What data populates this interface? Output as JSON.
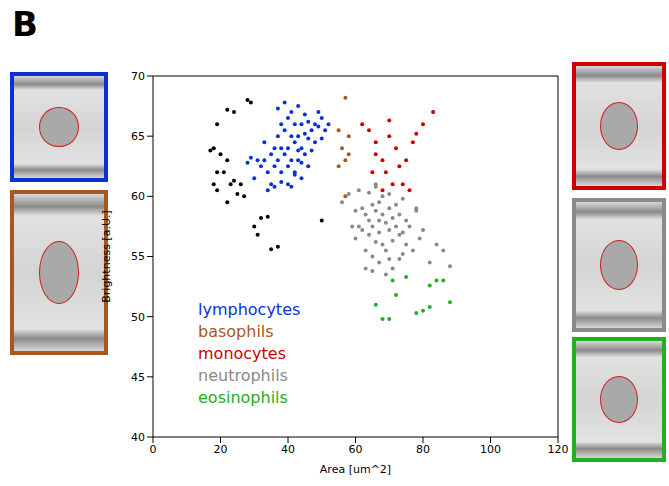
{
  "panel_label": "B",
  "chart_data": {
    "type": "scatter",
    "x_label": "Area [um^2]",
    "y_label": "Brightness [a.U.]",
    "xlim": [
      0,
      120
    ],
    "xticks": [
      0,
      20,
      40,
      60,
      80,
      100,
      120
    ],
    "ylim": [
      40,
      70
    ],
    "yticks": [
      40,
      45,
      50,
      55,
      60,
      65,
      70
    ],
    "grid": false,
    "legend": "lower left",
    "marker": "circle",
    "series": [
      {
        "color": "#000000",
        "x": [
          22,
          24,
          28,
          29,
          19,
          18,
          20,
          22,
          19,
          18,
          21,
          24,
          25,
          19,
          22,
          27,
          26,
          30,
          31,
          34,
          32,
          35,
          37,
          50,
          17,
          23
        ],
        "values": [
          67.2,
          67,
          68,
          67.8,
          66,
          64,
          63.5,
          63,
          62,
          61,
          62,
          61.3,
          60.2,
          60.5,
          59.5,
          60,
          61,
          57.5,
          56.8,
          58.3,
          58.2,
          55.6,
          55.8,
          58,
          63.8,
          61
        ]
      },
      {
        "name": "lymphocytes",
        "color": "#0a32d2",
        "x": [
          30,
          32,
          33,
          34,
          35,
          35,
          36,
          36,
          37,
          37,
          38,
          38,
          38,
          39,
          39,
          40,
          40,
          40,
          41,
          41,
          41,
          42,
          42,
          42,
          43,
          43,
          43,
          44,
          44,
          44,
          45,
          45,
          45,
          46,
          46,
          47,
          47,
          48,
          48,
          49,
          49,
          50,
          50,
          51,
          52,
          34,
          36,
          38,
          40,
          42,
          44,
          46,
          31,
          33,
          29,
          28,
          39,
          41,
          43,
          37
        ],
        "values": [
          61.5,
          62.5,
          63,
          62,
          63.5,
          61,
          64,
          62.5,
          63,
          65,
          64,
          62,
          66,
          63.5,
          65.5,
          64,
          62.5,
          66.5,
          65,
          63,
          67,
          64.5,
          66,
          62,
          65,
          63.8,
          67.5,
          64,
          66,
          62.8,
          65.2,
          63.5,
          66.8,
          64.8,
          66.2,
          65.5,
          63.8,
          66,
          64.5,
          65.8,
          67,
          64.8,
          66.5,
          65.5,
          66,
          60.5,
          60.8,
          61.2,
          61,
          61.8,
          61.5,
          62.5,
          63,
          64.5,
          63.2,
          62.8,
          67.8,
          60.8,
          63,
          67.3
        ]
      },
      {
        "name": "basophils",
        "color": "#a8581e",
        "x": [
          57,
          55,
          58,
          56,
          57,
          55,
          58,
          57
        ],
        "values": [
          68.2,
          65.5,
          65,
          64,
          63,
          62.5,
          63.5,
          60
        ]
      },
      {
        "name": "monocytes",
        "color": "#cc0000",
        "x": [
          62,
          64,
          66,
          68,
          70,
          70,
          72,
          69,
          71,
          73,
          75,
          77,
          78,
          80,
          83,
          74,
          76,
          68,
          65,
          66
        ],
        "values": [
          66,
          65.5,
          64.5,
          63,
          66.3,
          65,
          64,
          62,
          61,
          62.5,
          63,
          64.5,
          65.2,
          66,
          67,
          61,
          60.5,
          60.5,
          62,
          63.5
        ]
      },
      {
        "name": "neutrophils",
        "color": "#8a8a8a",
        "x": [
          56,
          58,
          59,
          60,
          60,
          61,
          62,
          62,
          63,
          63,
          64,
          64,
          64,
          65,
          65,
          65,
          66,
          66,
          66,
          67,
          67,
          67,
          68,
          68,
          68,
          69,
          69,
          70,
          70,
          70,
          71,
          71,
          72,
          72,
          73,
          73,
          74,
          74,
          75,
          75,
          76,
          77,
          78,
          79,
          80,
          82,
          84,
          86,
          88,
          63,
          65,
          67,
          69,
          71,
          73,
          61,
          66,
          70,
          74,
          78
        ],
        "values": [
          59.5,
          60.2,
          57.5,
          58.8,
          56.5,
          60.5,
          59,
          57.2,
          58.5,
          55.5,
          60.3,
          58,
          56.8,
          59.3,
          57.5,
          55,
          58.8,
          60.8,
          56.2,
          58,
          59.5,
          57,
          58.5,
          56,
          60,
          57.8,
          55.5,
          59,
          57.2,
          54.8,
          58.2,
          56.3,
          57.5,
          59.3,
          56.8,
          58.5,
          57,
          55.2,
          58,
          56,
          57.5,
          55.5,
          58.8,
          56.5,
          57.2,
          54.5,
          56,
          55.5,
          54.2,
          54,
          53.8,
          54.5,
          53.5,
          54,
          54.8,
          57.5,
          61,
          60.2,
          59.8,
          59
        ]
      },
      {
        "name": "eosinophils",
        "color": "#22b022",
        "x": [
          66,
          68,
          70,
          71,
          72,
          75,
          78,
          80,
          82,
          84,
          88,
          82,
          86
        ],
        "values": [
          51,
          49.8,
          49.8,
          53,
          51.8,
          53.3,
          50.3,
          50.5,
          50.8,
          53,
          51.2,
          52.6,
          53
        ]
      }
    ]
  }
}
